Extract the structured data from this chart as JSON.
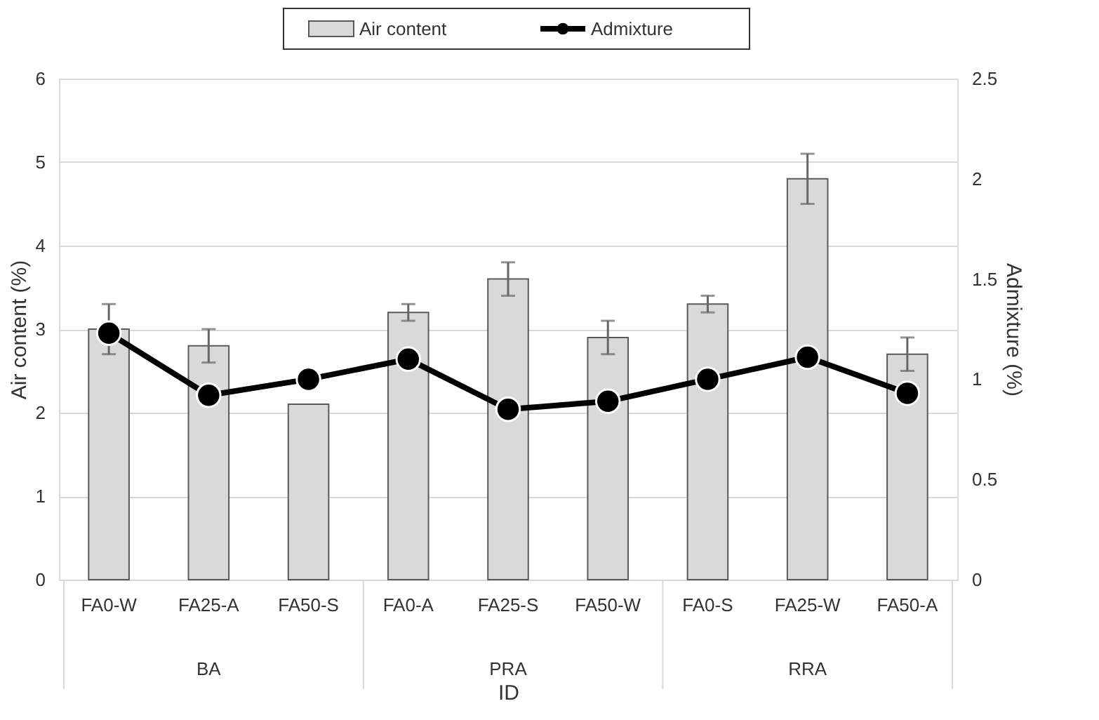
{
  "chart_data": {
    "type": "bar",
    "xlabel": "ID",
    "ylabel": "Air content (%)",
    "y2label": "Admixture (%)",
    "categories": [
      "FA0-W",
      "FA25-A",
      "FA50-S",
      "FA0-A",
      "FA25-S",
      "FA50-W",
      "FA0-S",
      "FA25-W",
      "FA50-A"
    ],
    "annotations": [
      "BA",
      "PRA",
      "RRA"
    ],
    "series": [
      {
        "name": "Air content",
        "color": "#d9d9d9",
        "values": [
          3.0,
          2.8,
          2.1,
          3.2,
          3.6,
          2.9,
          3.3,
          4.8,
          2.7
        ],
        "errors": [
          0.3,
          0.2,
          null,
          0.1,
          0.2,
          0.2,
          0.1,
          0.3,
          0.2
        ]
      },
      {
        "name": "Admixture",
        "type": "line",
        "axis": "y2",
        "color": "#000000",
        "marker": "circle",
        "values": [
          1.23,
          0.92,
          1.0,
          1.1,
          0.85,
          0.89,
          1.0,
          1.11,
          0.93
        ]
      }
    ],
    "ylim": [
      0,
      6
    ],
    "yticks": [
      0,
      1,
      2,
      3,
      4,
      5,
      6
    ],
    "y2lim": [
      0,
      2.5
    ],
    "y2ticks": [
      0,
      0.5,
      1,
      1.5,
      2,
      2.5
    ],
    "grid": "y",
    "legend": "top"
  }
}
